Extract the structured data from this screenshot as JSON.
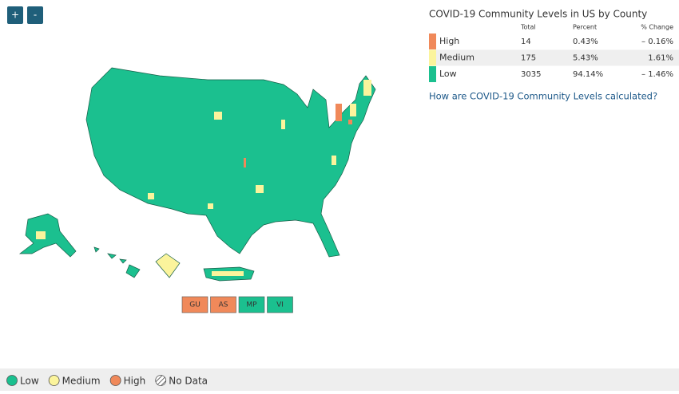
{
  "zoom_buttons": [
    "+",
    "-"
  ],
  "summary": {
    "title": "COVID-19 Community Levels in US by County",
    "headers": [
      "Total",
      "Percent",
      "% Change"
    ],
    "rows": [
      {
        "level": "High",
        "total": "14",
        "percent": "0.43%",
        "change": "– 0.16%",
        "color": "#f0895a"
      },
      {
        "level": "Medium",
        "total": "175",
        "percent": "5.43%",
        "change": "1.61%",
        "color": "#fbf49c"
      },
      {
        "level": "Low",
        "total": "3035",
        "percent": "94.14%",
        "change": "– 1.46%",
        "color": "#1bc08f"
      }
    ],
    "link": "How are COVID-19 Community Levels calculated?"
  },
  "territories": [
    {
      "label": "GU",
      "color": "#f0895a"
    },
    {
      "label": "AS",
      "color": "#f0895a"
    },
    {
      "label": "MP",
      "color": "#1bc08f"
    },
    {
      "label": "VI",
      "color": "#1bc08f"
    }
  ],
  "legend": [
    {
      "label": "Low",
      "color": "#1bc08f"
    },
    {
      "label": "Medium",
      "color": "#fbf49c"
    },
    {
      "label": "High",
      "color": "#f0895a"
    },
    {
      "label": "No Data"
    }
  ]
}
